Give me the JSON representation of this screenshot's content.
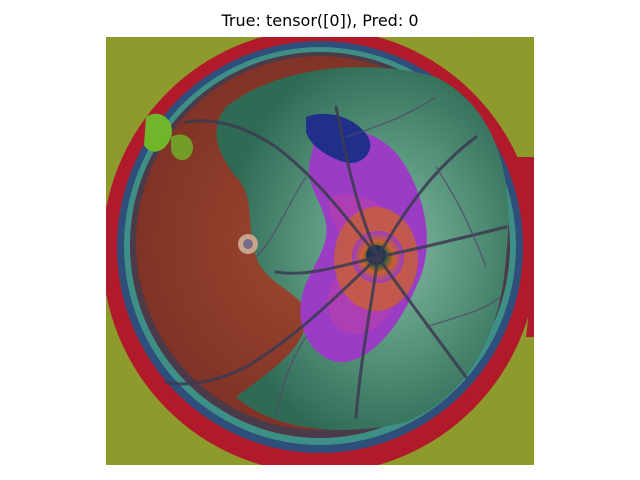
{
  "figure": {
    "title": "True: tensor([0]), Pred: 0",
    "colors": {
      "background_olive": "#8f9a2c",
      "ring_crimson": "#b01a2a",
      "rim_blue": "#2e4f7c",
      "rim_teal": "#3e8f86",
      "field_red": "#8d3a2a",
      "field_rust": "#a04a30",
      "retina_green": "#4f8f73",
      "retina_light": "#86b9a4",
      "macula_lesion": "#c9a38a",
      "disc_purple": "#9a3cc4",
      "disc_magenta": "#b33fb0",
      "disc_orange": "#c9622a",
      "disc_center": "#1f3550",
      "vessel_dark": "#3c3a52",
      "edge_green": "#6fb62a"
    }
  }
}
